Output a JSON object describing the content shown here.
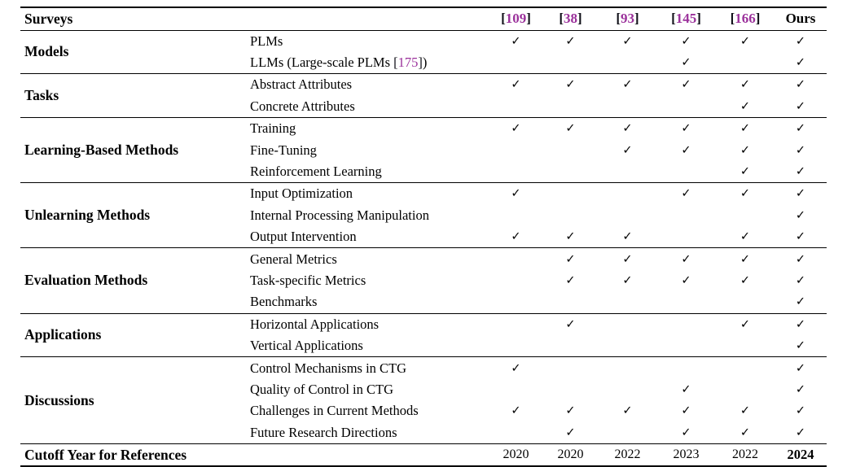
{
  "colors": {
    "citation": "#9b319b",
    "bracket": "#101018",
    "text": "#000000",
    "rule": "#000000"
  },
  "check_glyph": "✓",
  "header": {
    "surveys": "Surveys",
    "cites": [
      {
        "open": "[",
        "num": "109",
        "close": "]"
      },
      {
        "open": "[",
        "num": "38",
        "close": "]"
      },
      {
        "open": "[",
        "num": "93",
        "close": "]"
      },
      {
        "open": "[",
        "num": "145",
        "close": "]"
      },
      {
        "open": "[",
        "num": "166",
        "close": "]"
      }
    ],
    "ours": "Ours"
  },
  "groups": [
    {
      "category": "Models",
      "rows": [
        {
          "label": "PLMs",
          "checks": [
            "✓",
            "✓",
            "✓",
            "✓",
            "✓",
            "✓"
          ]
        },
        {
          "label_prefix": "LLMs (Large-scale PLMs ",
          "cite_open": "[",
          "cite_num": "175",
          "cite_close": "]",
          "label_suffix": ")",
          "checks": [
            "",
            "",
            "",
            "✓",
            "",
            "✓"
          ]
        }
      ]
    },
    {
      "category": "Tasks",
      "rows": [
        {
          "label": "Abstract Attributes",
          "checks": [
            "✓",
            "✓",
            "✓",
            "✓",
            "✓",
            "✓"
          ]
        },
        {
          "label": "Concrete Attributes",
          "checks": [
            "",
            "",
            "",
            "",
            "✓",
            "✓"
          ]
        }
      ]
    },
    {
      "category": "Learning-Based Methods",
      "rows": [
        {
          "label": "Training",
          "checks": [
            "✓",
            "✓",
            "✓",
            "✓",
            "✓",
            "✓"
          ]
        },
        {
          "label": "Fine-Tuning",
          "checks": [
            "",
            "",
            "✓",
            "✓",
            "✓",
            "✓"
          ]
        },
        {
          "label": "Reinforcement Learning",
          "checks": [
            "",
            "",
            "",
            "",
            "✓",
            "✓"
          ]
        }
      ]
    },
    {
      "category": "Unlearning Methods",
      "rows": [
        {
          "label": "Input Optimization",
          "checks": [
            "✓",
            "",
            "",
            "✓",
            "✓",
            "✓"
          ]
        },
        {
          "label": "Internal Processing Manipulation",
          "checks": [
            "",
            "",
            "",
            "",
            "",
            "✓"
          ]
        },
        {
          "label": "Output Intervention",
          "checks": [
            "✓",
            "✓",
            "✓",
            "",
            "✓",
            "✓"
          ]
        }
      ]
    },
    {
      "category": "Evaluation Methods",
      "rows": [
        {
          "label": "General Metrics",
          "checks": [
            "",
            "✓",
            "✓",
            "✓",
            "✓",
            "✓"
          ]
        },
        {
          "label": "Task-specific Metrics",
          "checks": [
            "",
            "✓",
            "✓",
            "✓",
            "✓",
            "✓"
          ]
        },
        {
          "label": "Benchmarks",
          "checks": [
            "",
            "",
            "",
            "",
            "",
            "✓"
          ]
        }
      ]
    },
    {
      "category": "Applications",
      "rows": [
        {
          "label": "Horizontal Applications",
          "checks": [
            "",
            "✓",
            "",
            "",
            "✓",
            "✓"
          ]
        },
        {
          "label": "Vertical Applications",
          "checks": [
            "",
            "",
            "",
            "",
            "",
            "✓"
          ]
        }
      ]
    },
    {
      "category": "Discussions",
      "rows": [
        {
          "label": "Control Mechanisms in CTG",
          "checks": [
            "✓",
            "",
            "",
            "",
            "",
            "✓"
          ]
        },
        {
          "label": "Quality of Control in CTG",
          "checks": [
            "",
            "",
            "",
            "✓",
            "",
            "✓"
          ]
        },
        {
          "label": "Challenges in Current Methods",
          "checks": [
            "✓",
            "✓",
            "✓",
            "✓",
            "✓",
            "✓"
          ]
        },
        {
          "label": "Future Research Directions",
          "checks": [
            "",
            "✓",
            "",
            "✓",
            "✓",
            "✓"
          ]
        }
      ]
    }
  ],
  "footer": {
    "label": "Cutoff Year for References",
    "years": [
      "2020",
      "2020",
      "2022",
      "2023",
      "2022",
      "2024"
    ]
  }
}
